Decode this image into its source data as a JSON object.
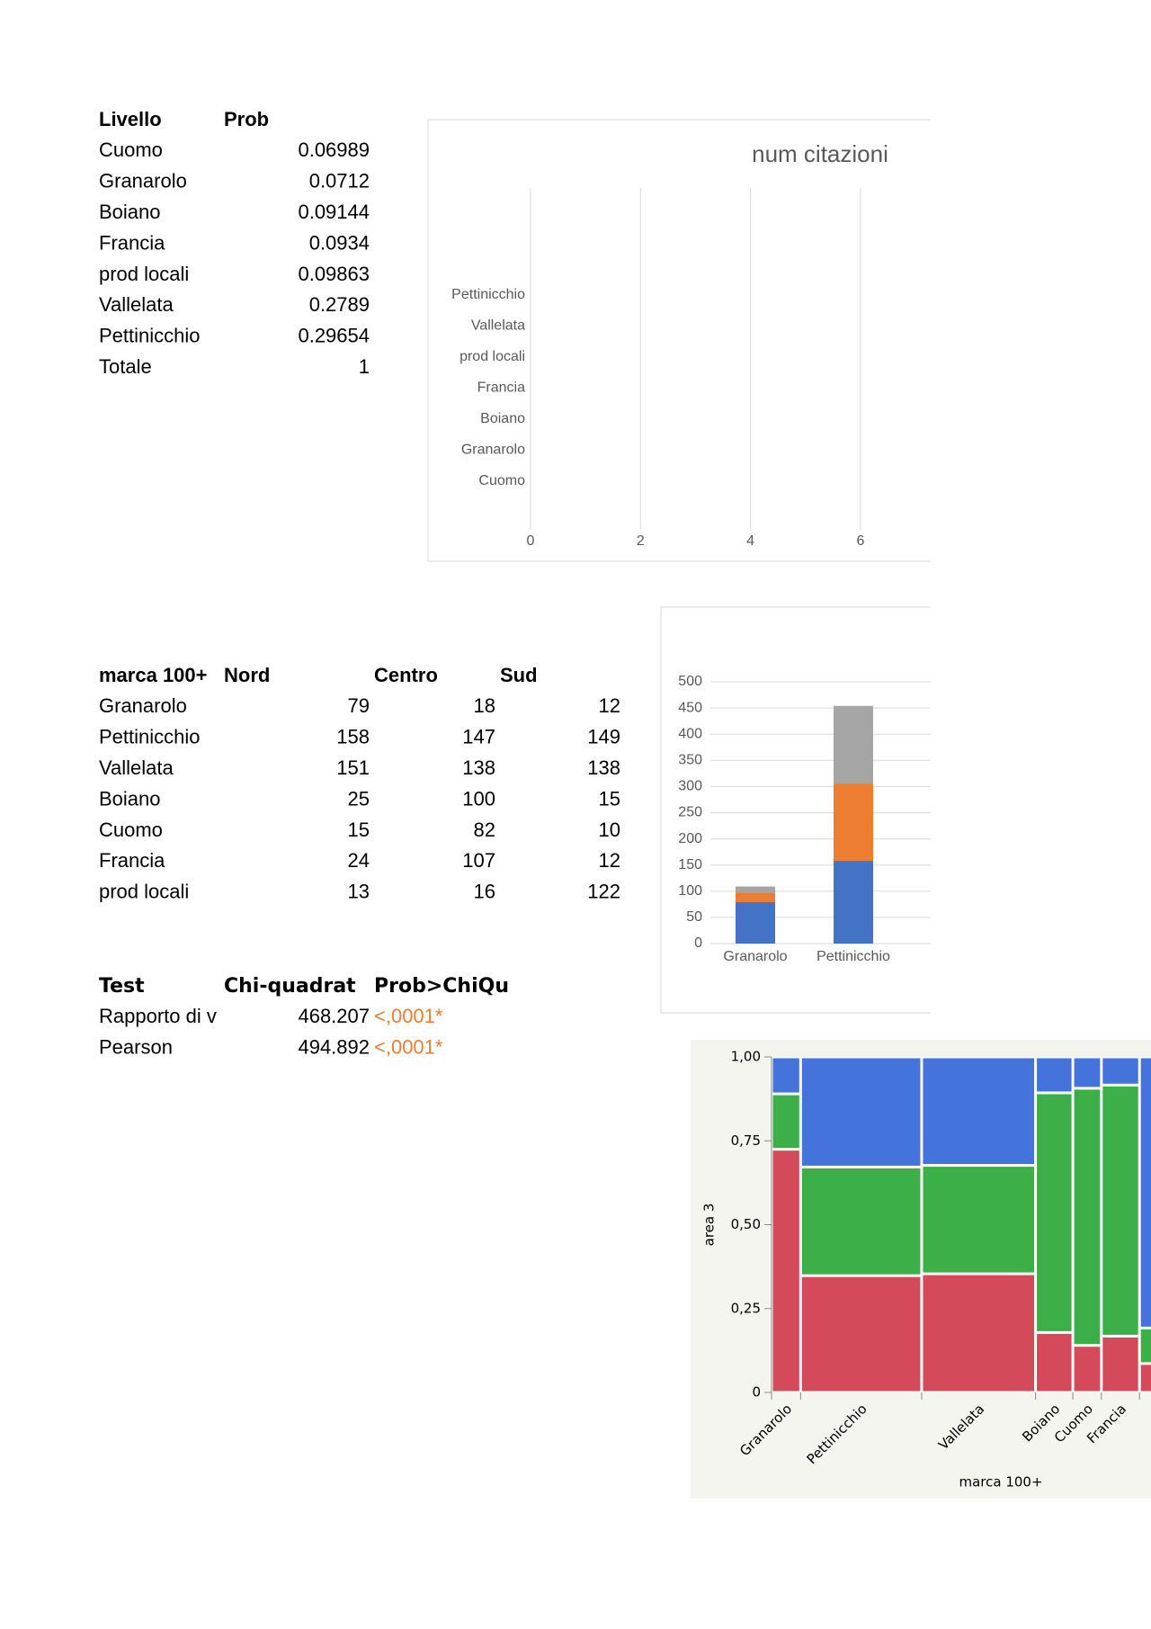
{
  "tables": {
    "prob_table": {
      "header": [
        "Livello",
        "Prob"
      ],
      "rows": [
        [
          "Cuomo",
          0.06989
        ],
        [
          "Granarolo",
          0.0712
        ],
        [
          "Boiano",
          0.09144
        ],
        [
          "Francia",
          0.0934
        ],
        [
          "prod locali",
          0.09863
        ],
        [
          "Vallelata",
          0.2789
        ],
        [
          "Pettinicchio",
          0.29654
        ],
        [
          "Totale",
          1
        ]
      ]
    },
    "count_table": {
      "header": [
        "marca 100+",
        "Nord",
        "Centro",
        "Sud"
      ],
      "rows": [
        [
          "Granarolo",
          79,
          18,
          12
        ],
        [
          "Pettinicchio",
          158,
          147,
          149
        ],
        [
          "Vallelata",
          151,
          138,
          138
        ],
        [
          "Boiano",
          25,
          100,
          15
        ],
        [
          "Cuomo",
          15,
          82,
          10
        ],
        [
          "Francia",
          24,
          107,
          12
        ],
        [
          "prod locali",
          13,
          16,
          122
        ]
      ]
    },
    "test_table": {
      "header": [
        "Test",
        "Chi-quadrat",
        "Prob>ChiQu"
      ],
      "rows": [
        [
          "Rapporto di v",
          468.207,
          "<,0001*"
        ],
        [
          "Pearson",
          494.892,
          "<,0001*"
        ]
      ]
    }
  },
  "chart_data": [
    {
      "type": "hbar",
      "title": "num citazioni",
      "categories": [
        "Cuomo",
        "Granarolo",
        "Boiano",
        "Francia",
        "prod locali",
        "Vallelata",
        "Pettinicchio"
      ],
      "values": [
        null,
        null,
        null,
        null,
        null,
        null,
        null
      ],
      "xlim": [
        0,
        7.26
      ],
      "xticks": [
        0,
        2,
        4,
        6
      ],
      "grid": true
    },
    {
      "type": "stacked_bar",
      "categories": [
        "Granarolo",
        "Pettinicchio"
      ],
      "series": [
        {
          "color": "#4472c4",
          "values": [
            79,
            158
          ]
        },
        {
          "color": "#ed7d31",
          "values": [
            18,
            147
          ]
        },
        {
          "color": "#a5a5a5",
          "values": [
            12,
            149
          ]
        }
      ],
      "ylim": [
        0,
        500
      ],
      "yticks": [
        0,
        50,
        100,
        150,
        200,
        250,
        300,
        350,
        400,
        450,
        500
      ],
      "grid": true
    },
    {
      "type": "mosaic",
      "xlabel": "marca 100+",
      "ylabel": "area 3",
      "categories": [
        "Granarolo",
        "Pettinicchio",
        "Vallelata",
        "Boiano",
        "Cuomo",
        "Francia",
        null
      ],
      "series": [
        {
          "color": "#d44a5a",
          "values": [
            79,
            158,
            151,
            25,
            15,
            24,
            13
          ]
        },
        {
          "color": "#3daf48",
          "values": [
            18,
            147,
            138,
            100,
            82,
            107,
            16
          ]
        },
        {
          "color": "#4573dc",
          "values": [
            12,
            149,
            138,
            15,
            10,
            12,
            122
          ]
        }
      ],
      "ylim": [
        0,
        1
      ],
      "yticks": [
        0,
        {
          "value": 0.25,
          "label": "0,25"
        },
        {
          "value": 0.5,
          "label": "0,50"
        },
        {
          "value": 0.75,
          "label": "0,75"
        },
        {
          "value": 1,
          "label": "1,00"
        }
      ]
    }
  ]
}
